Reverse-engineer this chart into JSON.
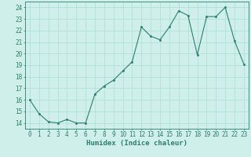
{
  "x": [
    0,
    1,
    2,
    3,
    4,
    5,
    6,
    7,
    8,
    9,
    10,
    11,
    12,
    13,
    14,
    15,
    16,
    17,
    18,
    19,
    20,
    21,
    22,
    23
  ],
  "y": [
    16.0,
    14.8,
    14.1,
    14.0,
    14.3,
    14.0,
    14.0,
    16.5,
    17.2,
    17.7,
    18.5,
    19.3,
    22.3,
    21.5,
    21.2,
    22.3,
    23.7,
    23.3,
    19.9,
    23.2,
    23.2,
    24.0,
    21.1,
    19.1
  ],
  "line_color": "#2e7d6e",
  "marker": "o",
  "marker_size": 1.8,
  "bg_color": "#cff0ea",
  "grid_color": "#aaddd5",
  "xlabel": "Humidex (Indice chaleur)",
  "xlim": [
    -0.5,
    23.5
  ],
  "ylim": [
    13.5,
    24.5
  ],
  "xtick_labels": [
    "0",
    "1",
    "2",
    "3",
    "4",
    "5",
    "6",
    "7",
    "8",
    "9",
    "10",
    "11",
    "12",
    "13",
    "14",
    "15",
    "16",
    "17",
    "18",
    "19",
    "20",
    "21",
    "22",
    "23"
  ],
  "ytick_values": [
    14,
    15,
    16,
    17,
    18,
    19,
    20,
    21,
    22,
    23,
    24
  ],
  "axis_fontsize": 5.5,
  "xlabel_fontsize": 6.5
}
